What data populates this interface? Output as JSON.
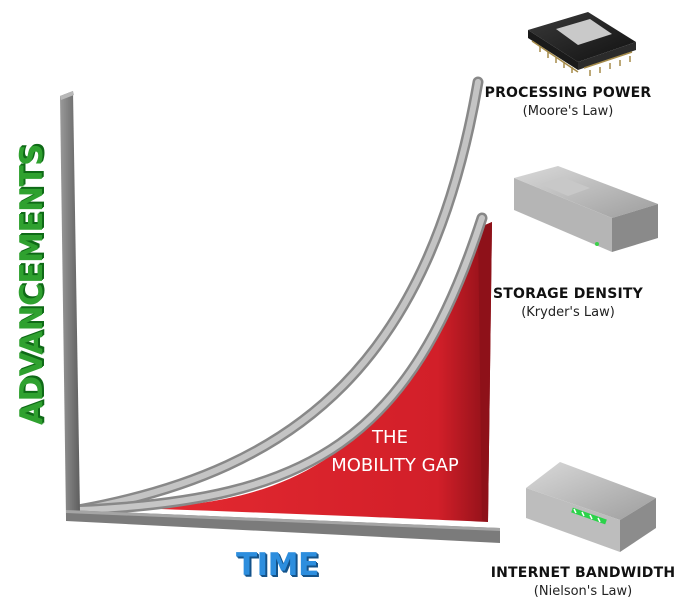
{
  "axes": {
    "y_title": "ADVANCEMENTS",
    "x_title": "TIME"
  },
  "gap_label": {
    "line1": "THE",
    "line2": "MOBILITY GAP"
  },
  "legend": [
    {
      "title": "PROCESSING POWER",
      "law": "(Moore's Law)",
      "icon": "cpu-chip-icon"
    },
    {
      "title": "STORAGE DENSITY",
      "law": "(Kryder's Law)",
      "icon": "hard-drive-icon"
    },
    {
      "title": "INTERNET BANDWIDTH",
      "law": "(Nielson's Law)",
      "icon": "network-router-icon"
    }
  ],
  "colors": {
    "y_title": "#2fa12f",
    "x_title": "#2d8ede",
    "gap_fill": "#d8202a",
    "curves": "#a8a8a8",
    "axes": "#7d7d7d"
  }
}
